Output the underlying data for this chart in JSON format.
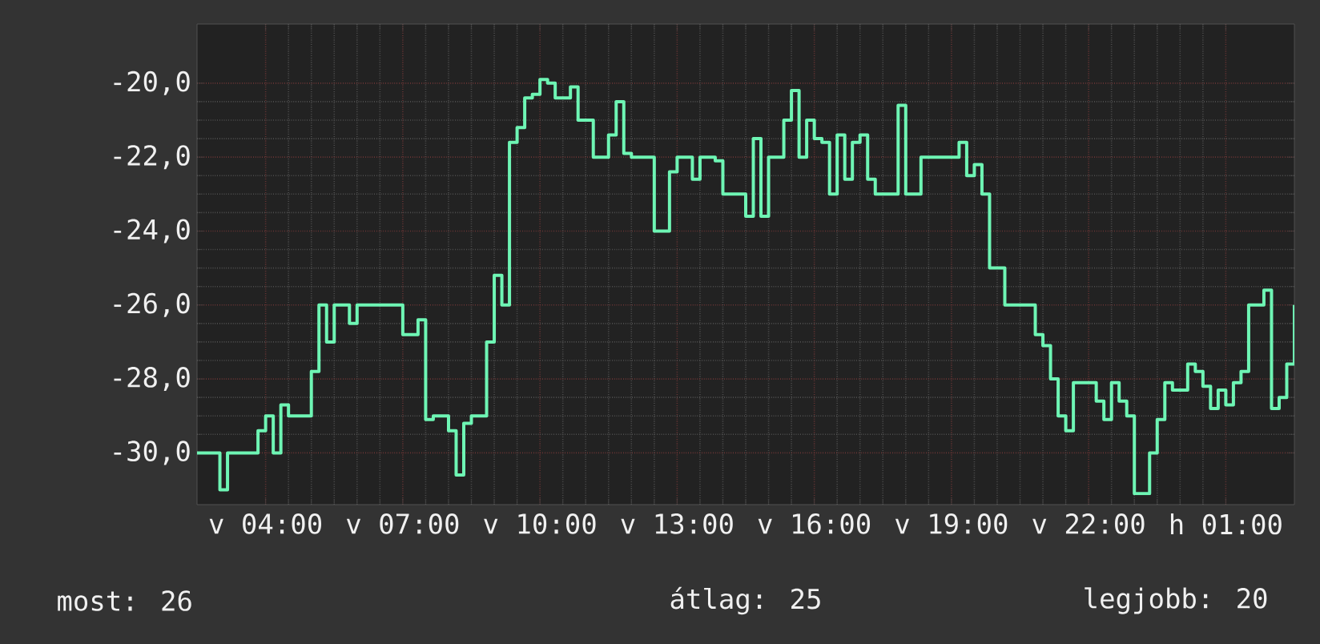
{
  "chart_data": {
    "type": "step",
    "color": "#6ef5b4",
    "annotations": [
      "most: 26",
      "átlag: 25",
      "legjobb: 20"
    ],
    "categories": [
      null,
      null,
      null,
      null,
      null,
      null,
      null,
      null,
      null,
      "v 04:00",
      null,
      null,
      null,
      null,
      null,
      null,
      null,
      null,
      null,
      null,
      null,
      null,
      null,
      null,
      null,
      null,
      null,
      "v 07:00",
      null,
      null,
      null,
      null,
      null,
      null,
      null,
      null,
      null,
      null,
      null,
      null,
      null,
      null,
      null,
      null,
      null,
      "v 10:00",
      null,
      null,
      null,
      null,
      null,
      null,
      null,
      null,
      null,
      null,
      null,
      null,
      null,
      null,
      null,
      null,
      null,
      "v 13:00",
      null,
      null,
      null,
      null,
      null,
      null,
      null,
      null,
      null,
      null,
      null,
      null,
      null,
      null,
      null,
      null,
      null,
      "v 16:00",
      null,
      null,
      null,
      null,
      null,
      null,
      null,
      null,
      null,
      null,
      null,
      null,
      null,
      null,
      null,
      null,
      null,
      "v 19:00",
      null,
      null,
      null,
      null,
      null,
      null,
      null,
      null,
      null,
      null,
      null,
      null,
      null,
      null,
      null,
      null,
      null,
      "v 22:00",
      null,
      null,
      null,
      null,
      null,
      null,
      null,
      null,
      null,
      null,
      null,
      null,
      null,
      null,
      null,
      null,
      null,
      "h 01:00",
      null,
      null,
      null,
      null,
      null,
      null,
      null,
      null,
      null
    ],
    "values": [
      -30,
      -30,
      -30,
      -31,
      -30,
      -30,
      -30,
      -30,
      -29.4,
      -29,
      -30,
      -28.7,
      -29,
      -29,
      -29,
      -27.8,
      -26,
      -27,
      -26,
      -26,
      -26.5,
      -26,
      -26,
      -26,
      -26,
      -26,
      -26,
      -26.8,
      -26.8,
      -26.4,
      -29.1,
      -29,
      -29,
      -29.4,
      -30.6,
      -29.2,
      -29,
      -29,
      -27,
      -25.2,
      -26,
      -21.6,
      -21.2,
      -20.4,
      -20.3,
      -19.9,
      -20,
      -20.4,
      -20.4,
      -20.1,
      -21,
      -21,
      -22,
      -22,
      -21.4,
      -20.5,
      -21.9,
      -22,
      -22,
      -22,
      -24,
      -24,
      -22.4,
      -22,
      -22,
      -22.6,
      -22,
      -22,
      -22.1,
      -23,
      -23,
      -23,
      -23.6,
      -21.5,
      -23.6,
      -22,
      -22,
      -21,
      -20.2,
      -22,
      -21,
      -21.5,
      -21.6,
      -23,
      -21.4,
      -22.6,
      -21.6,
      -21.4,
      -22.6,
      -23,
      -23,
      -23,
      -20.6,
      -23,
      -23,
      -22,
      -22,
      -22,
      -22,
      -22,
      -21.6,
      -22.5,
      -22.2,
      -23,
      -25,
      -25,
      -26,
      -26,
      -26,
      -26,
      -26.8,
      -27.1,
      -28,
      -29,
      -29.4,
      -28.1,
      -28.1,
      -28.1,
      -28.6,
      -29.1,
      -28.1,
      -28.6,
      -29,
      -31.1,
      -31.1,
      -30,
      -29.1,
      -28.1,
      -28.3,
      -28.3,
      -27.6,
      -27.8,
      -28.2,
      -28.8,
      -28.3,
      -28.7,
      -28.1,
      -27.8,
      -26,
      -26,
      -25.6,
      -28.8,
      -28.5,
      -27.6,
      -26
    ],
    "ylim": [
      -31.4,
      -18.4
    ],
    "yticks": [
      {
        "value": -30,
        "label": "-30,0"
      },
      {
        "value": -28,
        "label": "-28,0"
      },
      {
        "value": -26,
        "label": "-26,0"
      },
      {
        "value": -24,
        "label": "-24,0"
      },
      {
        "value": -22,
        "label": "-22,0"
      },
      {
        "value": -20,
        "label": "-20,0"
      }
    ],
    "grid": true
  }
}
